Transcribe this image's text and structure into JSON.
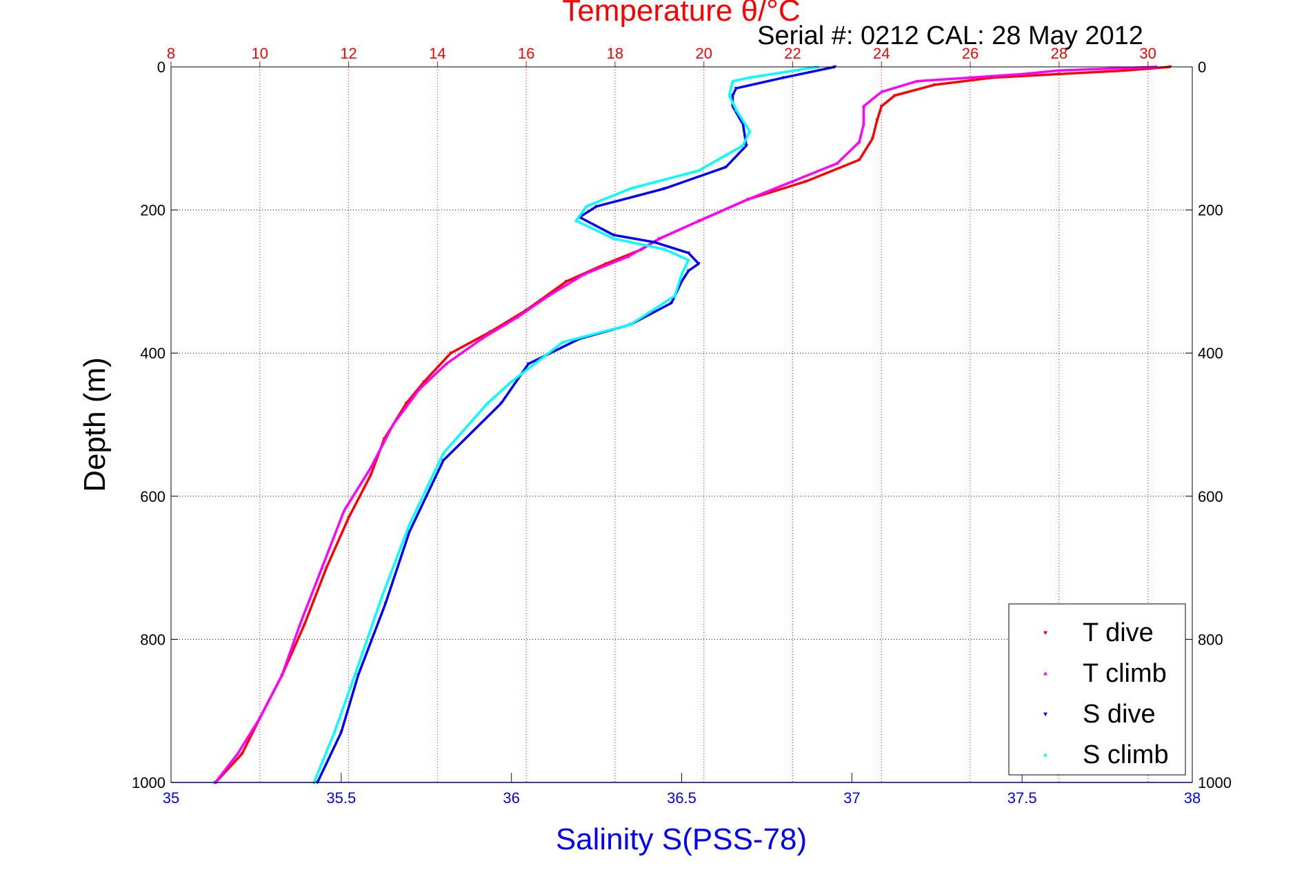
{
  "chart_data": {
    "type": "scatter",
    "title": "Temperature θ/°C",
    "subtitle": "Serial #: 0212  CAL: 28 May 2012",
    "ylabel": "Depth (m)",
    "xlabel": "Salinity S(PSS-78)",
    "ylim": [
      1000,
      0
    ],
    "yticks": [
      0,
      200,
      400,
      600,
      800,
      1000
    ],
    "x_bottom": {
      "label": "Salinity S(PSS-78)",
      "lim": [
        35,
        38
      ],
      "ticks": [
        35,
        35.5,
        36,
        36.5,
        37,
        37.5,
        38
      ],
      "tick_labels": [
        "35",
        "35.5",
        "36",
        "36.5",
        "37",
        "37.5",
        "38"
      ],
      "color": "#0000ff"
    },
    "x_top": {
      "label": "Temperature θ/°C",
      "lim": [
        8,
        31
      ],
      "ticks": [
        8,
        10,
        12,
        14,
        16,
        18,
        20,
        22,
        24,
        26,
        28,
        30
      ],
      "tick_labels": [
        "8",
        "10",
        "12",
        "14",
        "16",
        "18",
        "20",
        "22",
        "24",
        "26",
        "28",
        "30"
      ],
      "color": "#ff0000"
    },
    "grid": true,
    "legend_position": "bottom-right",
    "series": [
      {
        "name": "T dive",
        "axis": "top",
        "color": "#ff0000",
        "marker": "triangle-down",
        "points": [
          [
            30.5,
            0
          ],
          [
            29.5,
            5
          ],
          [
            28,
            10
          ],
          [
            26.5,
            15
          ],
          [
            25.2,
            25
          ],
          [
            24.3,
            40
          ],
          [
            24.0,
            55
          ],
          [
            23.9,
            75
          ],
          [
            23.8,
            100
          ],
          [
            23.5,
            130
          ],
          [
            22.3,
            160
          ],
          [
            21,
            185
          ],
          [
            19.9,
            215
          ],
          [
            19.0,
            240
          ],
          [
            18.6,
            255
          ],
          [
            17.8,
            275
          ],
          [
            16.9,
            300
          ],
          [
            16.0,
            340
          ],
          [
            15.2,
            370
          ],
          [
            14.3,
            400
          ],
          [
            13.7,
            440
          ],
          [
            13.3,
            470
          ],
          [
            12.8,
            520
          ],
          [
            12.5,
            570
          ],
          [
            12.0,
            630
          ],
          [
            11.5,
            700
          ],
          [
            11.0,
            780
          ],
          [
            10.5,
            850
          ],
          [
            10.0,
            910
          ],
          [
            9.6,
            960
          ],
          [
            9.0,
            1000
          ]
        ]
      },
      {
        "name": "T climb",
        "axis": "top",
        "color": "#ff00ff",
        "marker": "triangle-up",
        "points": [
          [
            30.2,
            0
          ],
          [
            28,
            5
          ],
          [
            27.2,
            10
          ],
          [
            26,
            15
          ],
          [
            24.8,
            20
          ],
          [
            24.0,
            35
          ],
          [
            23.6,
            55
          ],
          [
            23.6,
            80
          ],
          [
            23.5,
            105
          ],
          [
            23.0,
            135
          ],
          [
            22.0,
            160
          ],
          [
            21.0,
            185
          ],
          [
            19.9,
            215
          ],
          [
            19.0,
            240
          ],
          [
            18.3,
            265
          ],
          [
            17.3,
            290
          ],
          [
            16.5,
            320
          ],
          [
            15.8,
            350
          ],
          [
            15.0,
            380
          ],
          [
            14.2,
            415
          ],
          [
            13.6,
            450
          ],
          [
            13.0,
            500
          ],
          [
            12.5,
            560
          ],
          [
            11.9,
            620
          ],
          [
            11.4,
            700
          ],
          [
            10.9,
            780
          ],
          [
            10.5,
            850
          ],
          [
            10.0,
            910
          ],
          [
            9.5,
            960
          ],
          [
            9.0,
            1000
          ]
        ]
      },
      {
        "name": "S dive",
        "axis": "bottom",
        "color": "#0000ff",
        "marker": "triangle-down",
        "points": [
          [
            36.95,
            0
          ],
          [
            36.8,
            15
          ],
          [
            36.66,
            30
          ],
          [
            36.65,
            40
          ],
          [
            36.65,
            55
          ],
          [
            36.68,
            80
          ],
          [
            36.69,
            110
          ],
          [
            36.63,
            140
          ],
          [
            36.45,
            170
          ],
          [
            36.25,
            195
          ],
          [
            36.2,
            210
          ],
          [
            36.3,
            235
          ],
          [
            36.42,
            245
          ],
          [
            36.52,
            260
          ],
          [
            36.55,
            275
          ],
          [
            36.52,
            285
          ],
          [
            36.5,
            300
          ],
          [
            36.47,
            330
          ],
          [
            36.35,
            360
          ],
          [
            36.2,
            380
          ],
          [
            36.05,
            415
          ],
          [
            35.97,
            470
          ],
          [
            35.8,
            550
          ],
          [
            35.7,
            650
          ],
          [
            35.63,
            750
          ],
          [
            35.55,
            850
          ],
          [
            35.5,
            930
          ],
          [
            35.43,
            1000
          ]
        ]
      },
      {
        "name": "S climb",
        "axis": "bottom",
        "color": "#00ffff",
        "marker": "triangle-up",
        "points": [
          [
            36.9,
            0
          ],
          [
            36.7,
            15
          ],
          [
            36.65,
            20
          ],
          [
            36.64,
            40
          ],
          [
            36.66,
            60
          ],
          [
            36.7,
            90
          ],
          [
            36.68,
            110
          ],
          [
            36.55,
            145
          ],
          [
            36.35,
            170
          ],
          [
            36.22,
            195
          ],
          [
            36.19,
            215
          ],
          [
            36.3,
            240
          ],
          [
            36.45,
            255
          ],
          [
            36.52,
            270
          ],
          [
            36.5,
            290
          ],
          [
            36.48,
            320
          ],
          [
            36.35,
            360
          ],
          [
            36.15,
            385
          ],
          [
            36.0,
            440
          ],
          [
            35.93,
            470
          ],
          [
            35.8,
            540
          ],
          [
            35.7,
            640
          ],
          [
            35.62,
            740
          ],
          [
            35.54,
            850
          ],
          [
            35.48,
            930
          ],
          [
            35.42,
            1000
          ]
        ]
      }
    ]
  }
}
